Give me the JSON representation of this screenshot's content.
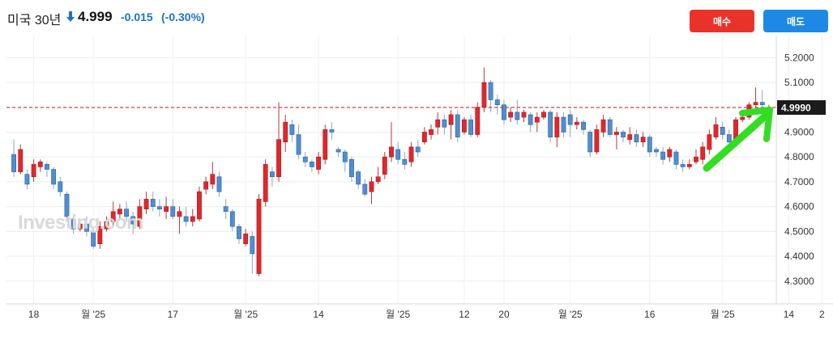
{
  "header": {
    "symbol": "미국 30년",
    "price": "4.999",
    "change": "-0.015",
    "change_pct": "(-0.30%)",
    "down_color": "#1a73c8",
    "arrow_icon": "down-arrow-icon"
  },
  "buttons": {
    "buy_label": "매수",
    "sell_label": "매도",
    "buy_color": "#e9332a",
    "sell_color": "#1e88e5"
  },
  "watermark": "Investing.com",
  "chart_data": {
    "type": "candlestick",
    "title": "",
    "xlabel": "",
    "ylabel": "",
    "ylim": [
      4.27,
      5.24
    ],
    "y_ticks": [
      4.3,
      4.4,
      4.5,
      4.6,
      4.7,
      4.8,
      4.9,
      5.0,
      5.1,
      5.2
    ],
    "y_tick_labels": [
      "4.3000",
      "4.4000",
      "4.5000",
      "4.6000",
      "4.7000",
      "4.8000",
      "4.9000",
      "",
      "5.1000",
      "5.2000"
    ],
    "x_tick_labels": [
      {
        "i": 3,
        "label": "18"
      },
      {
        "i": 12,
        "label": "월 '25"
      },
      {
        "i": 24,
        "label": "17"
      },
      {
        "i": 35,
        "label": "월 '25"
      },
      {
        "i": 46,
        "label": "14"
      },
      {
        "i": 58,
        "label": "월 '25"
      },
      {
        "i": 68,
        "label": "12"
      },
      {
        "i": 74,
        "label": "20"
      },
      {
        "i": 84,
        "label": "월 '25"
      },
      {
        "i": 96,
        "label": "16"
      },
      {
        "i": 107,
        "label": "월 '25"
      },
      {
        "i": 117,
        "label": "14"
      },
      {
        "i": 122,
        "label": "2"
      }
    ],
    "current_price": 4.999,
    "current_label": "4.9990",
    "up_color": "#e3262b",
    "down_color": "#4f8fd0",
    "grid": true,
    "candles": [
      [
        4.81,
        4.74,
        4.87,
        4.72
      ],
      [
        4.74,
        4.83,
        4.85,
        4.73
      ],
      [
        4.73,
        4.69,
        4.75,
        4.67
      ],
      [
        4.72,
        4.77,
        4.79,
        4.7
      ],
      [
        4.76,
        4.78,
        4.79,
        4.74
      ],
      [
        4.77,
        4.75,
        4.78,
        4.72
      ],
      [
        4.75,
        4.69,
        4.76,
        4.67
      ],
      [
        4.7,
        4.66,
        4.72,
        4.64
      ],
      [
        4.65,
        4.56,
        4.66,
        4.54
      ],
      [
        4.55,
        4.51,
        4.57,
        4.49
      ],
      [
        4.51,
        4.53,
        4.55,
        4.5
      ],
      [
        4.53,
        4.5,
        4.56,
        4.48
      ],
      [
        4.5,
        4.44,
        4.51,
        4.43
      ],
      [
        4.45,
        4.52,
        4.54,
        4.43
      ],
      [
        4.51,
        4.54,
        4.56,
        4.5
      ],
      [
        4.54,
        4.58,
        4.62,
        4.52
      ],
      [
        4.57,
        4.59,
        4.61,
        4.55
      ],
      [
        4.59,
        4.56,
        4.62,
        4.54
      ],
      [
        4.56,
        4.53,
        4.58,
        4.49
      ],
      [
        4.52,
        4.6,
        4.63,
        4.51
      ],
      [
        4.59,
        4.63,
        4.66,
        4.57
      ],
      [
        4.63,
        4.6,
        4.66,
        4.58
      ],
      [
        4.6,
        4.59,
        4.63,
        4.56
      ],
      [
        4.58,
        4.6,
        4.64,
        4.55
      ],
      [
        4.6,
        4.56,
        4.63,
        4.55
      ],
      [
        4.56,
        4.58,
        4.6,
        4.49
      ],
      [
        4.56,
        4.54,
        4.6,
        4.52
      ],
      [
        4.54,
        4.56,
        4.59,
        4.52
      ],
      [
        4.55,
        4.66,
        4.68,
        4.54
      ],
      [
        4.67,
        4.7,
        4.72,
        4.65
      ],
      [
        4.69,
        4.73,
        4.78,
        4.67
      ],
      [
        4.72,
        4.66,
        4.74,
        4.64
      ],
      [
        4.6,
        4.58,
        4.63,
        4.55
      ],
      [
        4.58,
        4.52,
        4.59,
        4.5
      ],
      [
        4.52,
        4.47,
        4.53,
        4.45
      ],
      [
        4.45,
        4.49,
        4.51,
        4.44
      ],
      [
        4.48,
        4.41,
        4.5,
        4.33
      ],
      [
        4.33,
        4.63,
        4.65,
        4.32
      ],
      [
        4.62,
        4.77,
        4.79,
        4.6
      ],
      [
        4.74,
        4.72,
        4.76,
        4.68
      ],
      [
        4.72,
        4.87,
        5.02,
        4.7
      ],
      [
        4.86,
        4.94,
        4.97,
        4.82
      ],
      [
        4.93,
        4.89,
        4.95,
        4.86
      ],
      [
        4.89,
        4.81,
        4.93,
        4.79
      ],
      [
        4.8,
        4.78,
        4.82,
        4.76
      ],
      [
        4.78,
        4.76,
        4.79,
        4.74
      ],
      [
        4.75,
        4.8,
        4.82,
        4.73
      ],
      [
        4.79,
        4.91,
        4.93,
        4.77
      ],
      [
        4.91,
        4.9,
        4.94,
        4.87
      ],
      [
        4.83,
        4.82,
        4.84,
        4.8
      ],
      [
        4.82,
        4.78,
        4.83,
        4.74
      ],
      [
        4.79,
        4.72,
        4.8,
        4.7
      ],
      [
        4.74,
        4.69,
        4.75,
        4.67
      ],
      [
        4.69,
        4.65,
        4.71,
        4.64
      ],
      [
        4.66,
        4.7,
        4.72,
        4.61
      ],
      [
        4.7,
        4.72,
        4.76,
        4.69
      ],
      [
        4.73,
        4.8,
        4.82,
        4.71
      ],
      [
        4.8,
        4.84,
        4.94,
        4.78
      ],
      [
        4.83,
        4.79,
        4.86,
        4.77
      ],
      [
        4.79,
        4.77,
        4.82,
        4.75
      ],
      [
        4.78,
        4.84,
        4.86,
        4.76
      ],
      [
        4.84,
        4.82,
        4.87,
        4.8
      ],
      [
        4.86,
        4.9,
        4.92,
        4.85
      ],
      [
        4.89,
        4.91,
        4.93,
        4.87
      ],
      [
        4.92,
        4.95,
        4.98,
        4.89
      ],
      [
        4.95,
        4.92,
        4.97,
        4.89
      ],
      [
        4.93,
        4.97,
        4.99,
        4.87
      ],
      [
        4.97,
        4.88,
        4.99,
        4.86
      ],
      [
        4.9,
        4.95,
        4.96,
        4.89
      ],
      [
        4.95,
        4.89,
        4.97,
        4.88
      ],
      [
        4.89,
        5.0,
        5.02,
        4.88
      ],
      [
        5.0,
        5.1,
        5.16,
        4.98
      ],
      [
        5.1,
        5.03,
        5.11,
        4.98
      ],
      [
        5.03,
        5.01,
        5.05,
        4.97
      ],
      [
        5.01,
        4.95,
        5.03,
        4.93
      ],
      [
        4.96,
        4.98,
        5.0,
        4.94
      ],
      [
        4.98,
        4.95,
        5.03,
        4.93
      ],
      [
        4.96,
        4.98,
        4.99,
        4.94
      ],
      [
        4.97,
        4.93,
        4.98,
        4.9
      ],
      [
        4.94,
        4.96,
        4.98,
        4.9
      ],
      [
        4.96,
        4.98,
        4.99,
        4.95
      ],
      [
        4.98,
        4.88,
        4.99,
        4.86
      ],
      [
        4.88,
        4.96,
        4.98,
        4.84
      ],
      [
        4.96,
        4.9,
        4.98,
        4.88
      ],
      [
        4.97,
        4.93,
        4.99,
        4.88
      ],
      [
        4.93,
        4.94,
        4.96,
        4.91
      ],
      [
        4.94,
        4.91,
        4.95,
        4.89
      ],
      [
        4.9,
        4.82,
        4.91,
        4.8
      ],
      [
        4.82,
        4.91,
        4.93,
        4.81
      ],
      [
        4.9,
        4.95,
        4.97,
        4.88
      ],
      [
        4.95,
        4.89,
        4.96,
        4.88
      ],
      [
        4.89,
        4.9,
        4.92,
        4.83
      ],
      [
        4.9,
        4.88,
        4.91,
        4.86
      ],
      [
        4.87,
        4.89,
        4.92,
        4.85
      ],
      [
        4.89,
        4.86,
        4.91,
        4.84
      ],
      [
        4.86,
        4.88,
        4.9,
        4.84
      ],
      [
        4.88,
        4.82,
        4.89,
        4.8
      ],
      [
        4.83,
        4.82,
        4.84,
        4.8
      ],
      [
        4.82,
        4.79,
        4.84,
        4.77
      ],
      [
        4.8,
        4.83,
        4.84,
        4.78
      ],
      [
        4.82,
        4.77,
        4.83,
        4.75
      ],
      [
        4.77,
        4.76,
        4.79,
        4.74
      ],
      [
        4.76,
        4.77,
        4.79,
        4.75
      ],
      [
        4.78,
        4.8,
        4.83,
        4.77
      ],
      [
        4.79,
        4.84,
        4.86,
        4.77
      ],
      [
        4.83,
        4.89,
        4.91,
        4.81
      ],
      [
        4.88,
        4.93,
        4.96,
        4.87
      ],
      [
        4.92,
        4.89,
        4.94,
        4.87
      ],
      [
        4.89,
        4.86,
        4.91,
        4.85
      ],
      [
        4.87,
        4.95,
        4.96,
        4.86
      ],
      [
        4.95,
        4.96,
        4.97,
        4.94
      ],
      [
        4.96,
        5.01,
        5.02,
        4.95
      ],
      [
        5.01,
        5.02,
        5.08,
        4.99
      ],
      [
        5.02,
        5.01,
        5.07,
        4.98
      ],
      [
        5.0,
        5.0,
        5.01,
        4.99
      ]
    ]
  }
}
